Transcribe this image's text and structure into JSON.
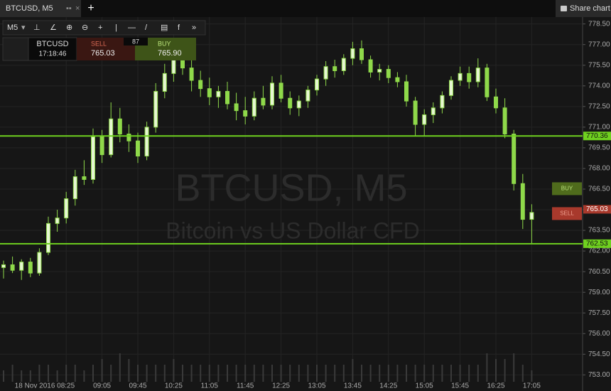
{
  "header": {
    "tab_title": "BTCUSD, M5",
    "share": "Share chart"
  },
  "toolbar": {
    "timeframe": "M5"
  },
  "trade_panel": {
    "symbol": "BTCUSD",
    "time": "17:18:46",
    "sell_label": "SELL",
    "sell_price": "765.03",
    "spread": "87",
    "buy_label": "BUY",
    "buy_price": "765.90"
  },
  "watermark": {
    "symbol": "BTCUSD, M5",
    "name": "Bitcoin vs US Dollar CFD"
  },
  "chart_data": {
    "type": "candlestick",
    "categories": [
      null,
      null,
      null,
      null,
      null,
      null,
      null,
      "18 Nov 2016 08:25",
      null,
      null,
      null,
      "09:05",
      null,
      null,
      null,
      "09:45",
      null,
      null,
      null,
      "10:25",
      null,
      null,
      null,
      "11:05",
      null,
      null,
      null,
      "11:45",
      null,
      null,
      null,
      "12:25",
      null,
      null,
      null,
      "13:05",
      null,
      null,
      null,
      "13:45",
      null,
      null,
      null,
      "14:25",
      null,
      null,
      null,
      "15:05",
      null,
      null,
      null,
      "15:45",
      null,
      null,
      null,
      "16:25",
      null,
      null,
      null,
      "17:05"
    ],
    "open": [
      760.8,
      761.0,
      760.6,
      761.2,
      760.4,
      761.9,
      764.0,
      764.4,
      765.8,
      767.4,
      767.2,
      770.3,
      769.0,
      771.6,
      770.5,
      770.0,
      768.9,
      771.0,
      773.6,
      774.9,
      776.3,
      775.3,
      774.4,
      773.8,
      773.2,
      773.6,
      772.7,
      772.2,
      771.8,
      773.1,
      772.6,
      774.2,
      773.1,
      772.4,
      772.9,
      773.7,
      774.5,
      775.4,
      775.1,
      776.0,
      776.7,
      775.9,
      775.0,
      775.2,
      774.6,
      774.3,
      772.9,
      771.2,
      771.9,
      772.4,
      773.3,
      774.4,
      774.9,
      774.3,
      775.3,
      773.2,
      772.4,
      770.5,
      766.9,
      764.3
    ],
    "high": [
      761.3,
      761.6,
      761.4,
      761.5,
      762.2,
      764.5,
      765.0,
      766.3,
      767.9,
      768.6,
      770.9,
      770.8,
      772.8,
      772.4,
      771.2,
      770.6,
      771.4,
      774.2,
      775.6,
      777.2,
      776.8,
      775.9,
      775.1,
      774.6,
      774.0,
      774.3,
      773.5,
      773.2,
      773.6,
      774.0,
      774.7,
      774.8,
      773.6,
      773.3,
      774.0,
      774.8,
      775.8,
      775.9,
      776.3,
      777.2,
      777.3,
      776.2,
      775.6,
      775.5,
      775.0,
      774.8,
      773.2,
      772.3,
      772.8,
      773.6,
      774.7,
      775.4,
      775.4,
      776.0,
      775.6,
      773.8,
      773.1,
      770.8,
      767.6,
      765.4
    ],
    "low": [
      760.0,
      760.4,
      759.9,
      760.1,
      760.2,
      761.7,
      763.4,
      764.0,
      765.3,
      766.8,
      766.9,
      768.4,
      768.8,
      769.9,
      769.2,
      768.4,
      768.6,
      770.6,
      773.1,
      774.3,
      774.8,
      773.6,
      773.2,
      772.6,
      772.4,
      772.3,
      771.5,
      771.2,
      771.5,
      772.3,
      772.3,
      772.8,
      771.9,
      771.8,
      772.4,
      773.3,
      774.0,
      774.6,
      774.8,
      775.5,
      775.6,
      774.6,
      774.4,
      774.2,
      773.9,
      772.5,
      770.4,
      770.4,
      771.3,
      772.0,
      773.0,
      774.0,
      773.8,
      773.9,
      772.9,
      772.0,
      770.2,
      766.4,
      763.6,
      762.5
    ],
    "close": [
      761.0,
      760.6,
      761.2,
      760.4,
      761.9,
      764.0,
      764.4,
      765.8,
      767.4,
      767.2,
      770.3,
      769.0,
      771.6,
      770.5,
      770.0,
      768.9,
      771.0,
      773.6,
      774.9,
      776.3,
      775.3,
      774.4,
      773.8,
      773.2,
      773.6,
      772.7,
      772.2,
      771.8,
      773.1,
      772.6,
      774.2,
      773.1,
      772.4,
      772.9,
      773.7,
      774.5,
      775.4,
      775.1,
      776.0,
      776.7,
      775.9,
      775.0,
      775.2,
      774.6,
      774.3,
      772.9,
      771.2,
      771.9,
      772.4,
      773.3,
      774.4,
      774.9,
      774.3,
      775.3,
      773.2,
      772.4,
      770.5,
      766.9,
      764.3,
      764.8
    ],
    "volume": [
      2,
      3,
      2,
      2,
      3,
      3,
      2,
      3,
      3,
      2,
      3,
      4,
      3,
      5,
      4,
      3,
      3,
      3,
      3,
      4,
      3,
      3,
      3,
      3,
      3,
      3,
      3,
      3,
      3,
      3,
      3,
      3,
      3,
      3,
      3,
      3,
      3,
      3,
      3,
      4,
      3,
      3,
      3,
      3,
      3,
      3,
      3,
      3,
      3,
      3,
      3,
      3,
      3,
      3,
      5,
      4,
      4,
      5,
      3,
      2
    ],
    "ylim": [
      752.5,
      779.0
    ],
    "yticks": [
      {
        "value": 753,
        "label": "753.00"
      },
      {
        "value": 754.5,
        "label": "754.50"
      },
      {
        "value": 756,
        "label": "756.00"
      },
      {
        "value": 757.5,
        "label": "757.50"
      },
      {
        "value": 759,
        "label": "759.00"
      },
      {
        "value": 760.5,
        "label": "760.50"
      },
      {
        "value": 762,
        "label": "762.00"
      },
      {
        "value": 763.5,
        "label": "763.50"
      },
      {
        "value": 765,
        "label": "765.00"
      },
      {
        "value": 766.5,
        "label": "766.50"
      },
      {
        "value": 768,
        "label": "768.00"
      },
      {
        "value": 769.5,
        "label": "769.50"
      },
      {
        "value": 771,
        "label": "771.00"
      },
      {
        "value": 772.5,
        "label": "772.50"
      },
      {
        "value": 774,
        "label": "774.00"
      },
      {
        "value": 775.5,
        "label": "775.50"
      },
      {
        "value": 777,
        "label": "777.00"
      },
      {
        "value": 778.5,
        "label": "778.50"
      }
    ],
    "hlines": [
      770.36,
      762.53
    ],
    "current_price": 765.03,
    "side_buttons": [
      "BUY",
      "SELL"
    ],
    "color": "#8fd94a",
    "line_color": "#6fd11f",
    "sell_color": "#a8392c",
    "buy_color": "#4f6b1c",
    "grid": true
  }
}
